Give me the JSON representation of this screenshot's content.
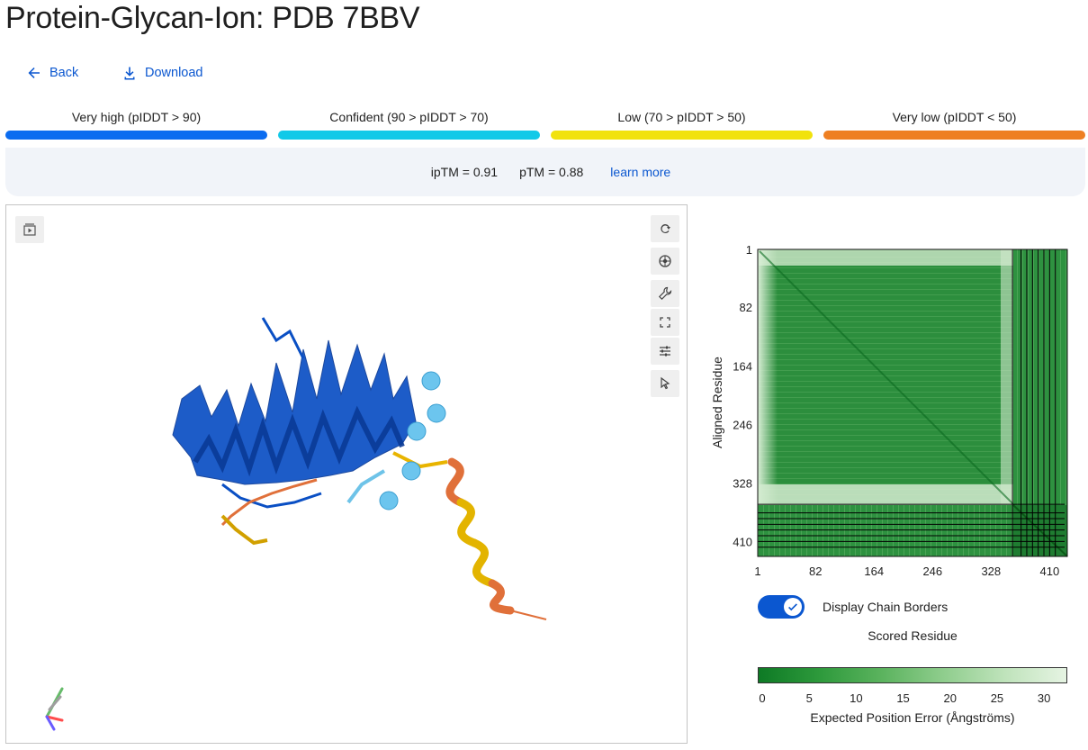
{
  "page": {
    "title": "Protein-Glycan-Ion: PDB 7BBV"
  },
  "nav": {
    "back_label": "Back",
    "download_label": "Download"
  },
  "confidence_legend": [
    {
      "label": "Very high (pIDDT > 90)",
      "color": "#0b6cf0"
    },
    {
      "label": "Confident (90 > pIDDT > 70)",
      "color": "#12c9e8"
    },
    {
      "label": "Low (70 > pIDDT > 50)",
      "color": "#f1e20d"
    },
    {
      "label": "Very low (pIDDT < 50)",
      "color": "#ee7f22"
    }
  ],
  "scores": {
    "iptm": "ipTM = 0.91",
    "ptm": "pTM = 0.88",
    "learn_more": "learn more"
  },
  "viewer": {
    "left_toolbar_icon": "animation-icon",
    "toolbar_icons": [
      "reset-camera-icon",
      "screenshot-icon",
      "wrench-icon",
      "fullscreen-icon",
      "settings-sliders-icon",
      "select-cursor-icon"
    ]
  },
  "pae_plot": {
    "y_axis_label": "Aligned Residue",
    "x_axis_label": "Scored Residue",
    "tick_labels": [
      "1",
      "82",
      "164",
      "246",
      "328",
      "410"
    ],
    "display_chain_borders_label": "Display Chain Borders",
    "display_chain_borders_on": true
  },
  "colorbar": {
    "ticks": [
      "0",
      "5",
      "10",
      "15",
      "20",
      "25",
      "30"
    ],
    "label": "Expected Position Error (Ångströms)",
    "color_low": "#0e7a25",
    "color_high": "#e6f4e3"
  },
  "chart_data": {
    "type": "heatmap",
    "xlabel": "Scored Residue",
    "ylabel": "Aligned Residue",
    "x_ticks": [
      1,
      82,
      164,
      246,
      328,
      410
    ],
    "y_ticks": [
      1,
      82,
      164,
      246,
      328,
      410
    ],
    "range": [
      1,
      431
    ],
    "chain_borders": [
      358,
      370,
      378,
      386,
      394,
      402,
      410,
      418
    ],
    "colorbar_range": [
      0,
      32
    ],
    "colorbar_label": "Expected Position Error (Ångströms)"
  }
}
